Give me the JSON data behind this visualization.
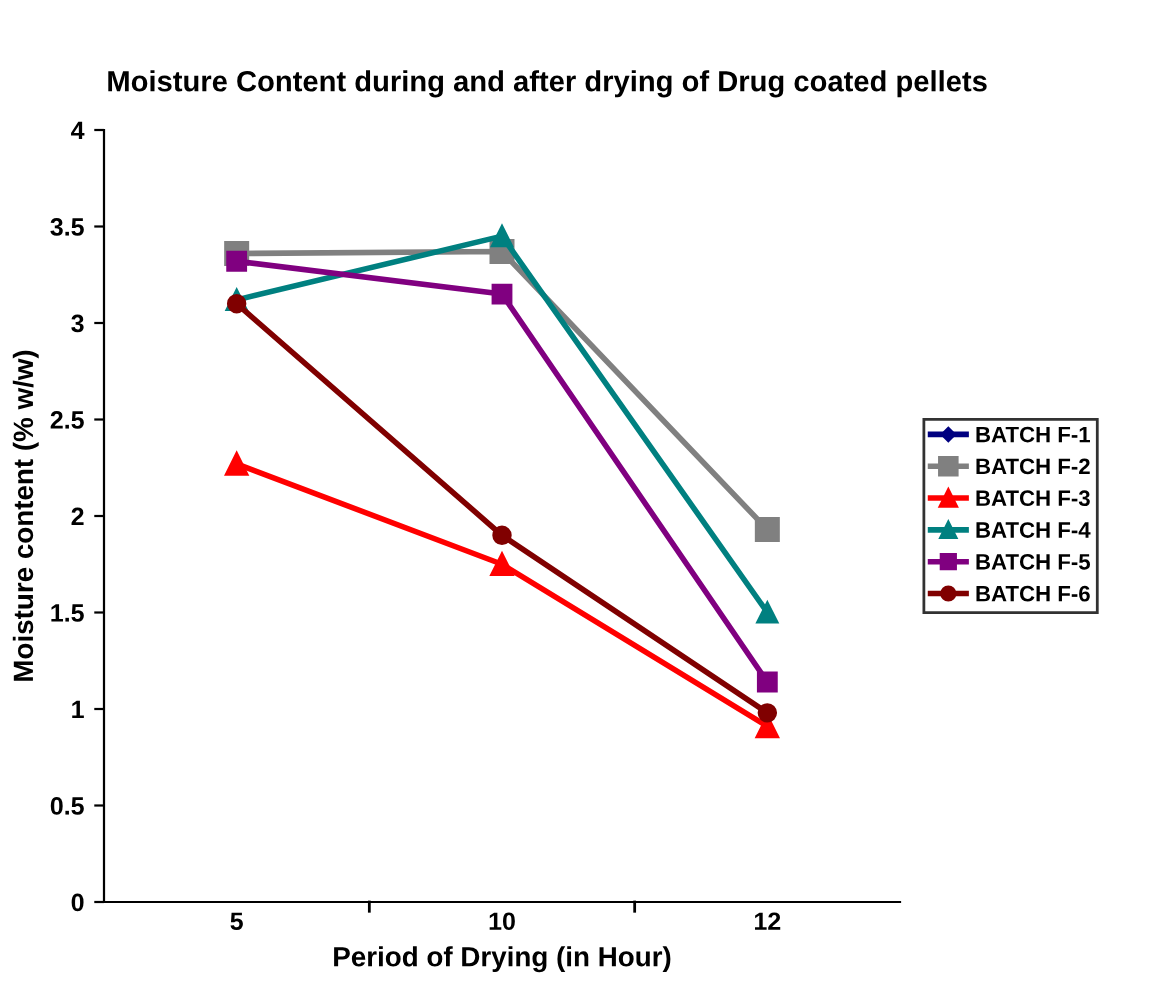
{
  "chart_data": {
    "type": "line",
    "title": "Moisture Content during and after drying of Drug coated pellets",
    "xlabel": "Period of Drying (in Hour)",
    "ylabel": "Moisture content (% w/w)",
    "categories": [
      "5",
      "10",
      "12"
    ],
    "ylim": [
      0,
      4
    ],
    "yticks": [
      0,
      0.5,
      1,
      1.5,
      2,
      2.5,
      3,
      3.5,
      4
    ],
    "grid": false,
    "legend": "right",
    "series": [
      {
        "name": "BATCH F-1",
        "color": "#000080",
        "marker": "diamond",
        "values": [
          null,
          null,
          null
        ]
      },
      {
        "name": "BATCH F-2",
        "color": "#808080",
        "marker": "square",
        "values": [
          3.36,
          3.37,
          1.93
        ]
      },
      {
        "name": "BATCH F-3",
        "color": "#ff0000",
        "marker": "triangle",
        "values": [
          2.27,
          1.75,
          0.91
        ]
      },
      {
        "name": "BATCH F-4",
        "color": "#008080",
        "marker": "triangle",
        "values": [
          3.12,
          3.45,
          1.5
        ]
      },
      {
        "name": "BATCH F-5",
        "color": "#800080",
        "marker": "square",
        "values": [
          3.32,
          3.15,
          1.14
        ]
      },
      {
        "name": "BATCH F-6",
        "color": "#800000",
        "marker": "circle",
        "values": [
          3.1,
          1.9,
          0.98
        ]
      }
    ]
  }
}
